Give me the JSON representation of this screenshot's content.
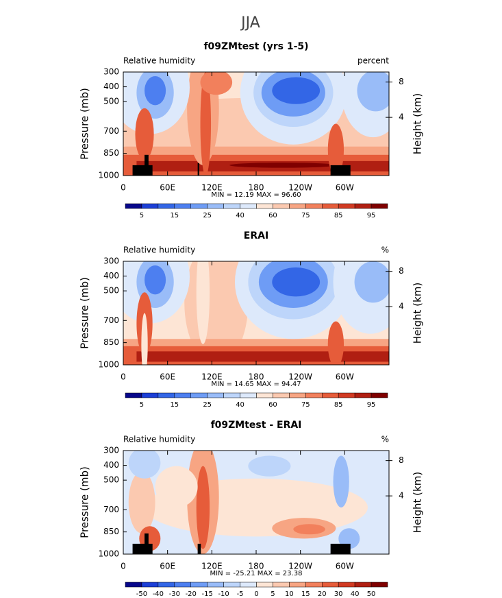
{
  "suptitle": "JJA",
  "chart_data": [
    {
      "type": "contour",
      "title": "f09ZMtest (yrs 1-5)",
      "left_string": "Relative humidity",
      "right_string": "percent",
      "ylabel": "Pressure (mb)",
      "y2label": "Height (km)",
      "ylim": [
        1000,
        300
      ],
      "yticks": [
        300,
        400,
        500,
        700,
        850,
        1000
      ],
      "y2ticks": [
        4,
        8
      ],
      "xlim": [
        0,
        360
      ],
      "xticks": [
        0,
        {
          "value": 60,
          "label": "60E"
        },
        {
          "value": 120,
          "label": "120E"
        },
        180,
        {
          "value": 240,
          "label": "120W"
        },
        {
          "value": 300,
          "label": "60W"
        }
      ],
      "min_max": "MIN =  12.19   MAX =  96.60",
      "colorbar": {
        "labels": [
          5,
          15,
          25,
          40,
          60,
          75,
          85,
          95
        ],
        "colors": [
          "#07078a",
          "#1c3fd6",
          "#3366e6",
          "#4d7ff0",
          "#6e9cf5",
          "#99bcf8",
          "#bdd5fa",
          "#dde9fb",
          "#fde5d5",
          "#fbc9b0",
          "#f7a583",
          "#f2805c",
          "#e65c3a",
          "#d13a22",
          "#b01f12",
          "#7f0000"
        ]
      }
    },
    {
      "type": "contour",
      "title": "ERAI",
      "left_string": "Relative humidity",
      "right_string": "%",
      "ylabel": "Pressure (mb)",
      "y2label": "Height (km)",
      "ylim": [
        1000,
        300
      ],
      "yticks": [
        300,
        400,
        500,
        700,
        850,
        1000
      ],
      "y2ticks": [
        4,
        8
      ],
      "xlim": [
        0,
        360
      ],
      "xticks": [
        0,
        {
          "value": 60,
          "label": "60E"
        },
        {
          "value": 120,
          "label": "120E"
        },
        180,
        {
          "value": 240,
          "label": "120W"
        },
        {
          "value": 300,
          "label": "60W"
        }
      ],
      "min_max": "MIN =  14.65   MAX =  94.47",
      "colorbar": {
        "labels": [
          5,
          15,
          25,
          40,
          60,
          75,
          85,
          95
        ],
        "colors": [
          "#07078a",
          "#1c3fd6",
          "#3366e6",
          "#4d7ff0",
          "#6e9cf5",
          "#99bcf8",
          "#bdd5fa",
          "#dde9fb",
          "#fde5d5",
          "#fbc9b0",
          "#f7a583",
          "#f2805c",
          "#e65c3a",
          "#d13a22",
          "#b01f12",
          "#7f0000"
        ]
      }
    },
    {
      "type": "contour",
      "title": "f09ZMtest - ERAI",
      "left_string": "Relative humidity",
      "right_string": "%",
      "ylabel": "Pressure (mb)",
      "y2label": "Height (km)",
      "ylim": [
        1000,
        300
      ],
      "yticks": [
        300,
        400,
        500,
        700,
        850,
        1000
      ],
      "y2ticks": [
        4,
        8
      ],
      "xlim": [
        0,
        360
      ],
      "xticks": [
        0,
        {
          "value": 60,
          "label": "60E"
        },
        {
          "value": 120,
          "label": "120E"
        },
        180,
        {
          "value": 240,
          "label": "120W"
        },
        {
          "value": 300,
          "label": "60W"
        }
      ],
      "min_max": "MIN = -25.21   MAX =  23.38",
      "colorbar": {
        "labels": [
          -50,
          -40,
          -30,
          -20,
          -15,
          -10,
          -5,
          0,
          5,
          10,
          15,
          20,
          30,
          40,
          50
        ],
        "colors": [
          "#07078a",
          "#1c3fd6",
          "#3366e6",
          "#4d7ff0",
          "#6e9cf5",
          "#99bcf8",
          "#bdd5fa",
          "#dde9fb",
          "#fde5d5",
          "#fbc9b0",
          "#f7a583",
          "#f2805c",
          "#e65c3a",
          "#d13a22",
          "#b01f12",
          "#7f0000"
        ]
      }
    }
  ]
}
